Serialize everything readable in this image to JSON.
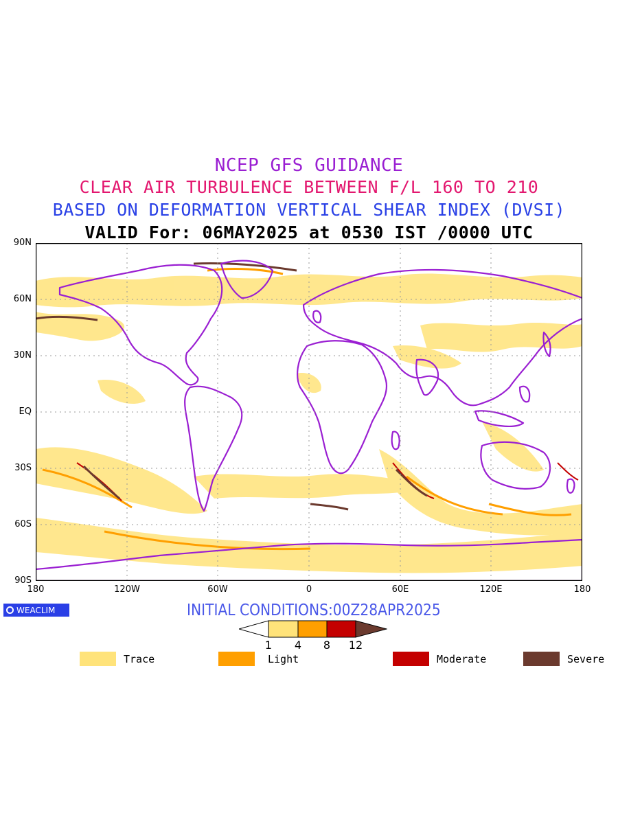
{
  "titles": {
    "line1": "NCEP GFS GUIDANCE",
    "line2": "CLEAR AIR TURBULENCE BETWEEN F/L 160 TO 210",
    "line3": "BASED ON DEFORMATION VERTICAL SHEAR INDEX (DVSI)",
    "line4": "VALID For: 06MAY2025 at 0530 IST /0000 UTC"
  },
  "axes": {
    "lat_labels": [
      "90N",
      "60N",
      "30N",
      "EQ",
      "30S",
      "60S",
      "90S"
    ],
    "lon_labels": [
      "180",
      "120W",
      "60W",
      "0",
      "60E",
      "120E",
      "180"
    ]
  },
  "logo": {
    "text": "WEACLIM"
  },
  "initial_conditions": "INITIAL CONDITIONS:00Z28APR2025",
  "colorbar": {
    "ticks": [
      "1",
      "4",
      "8",
      "12"
    ],
    "colors": {
      "trace": "#ffe37a",
      "light": "#ff9f00",
      "moderate": "#c40000",
      "severe": "#6b3a2e"
    }
  },
  "legend": [
    {
      "label": "Trace",
      "color": "#ffe37a"
    },
    {
      "label": "Light",
      "color": "#ff9f00"
    },
    {
      "label": "Moderate",
      "color": "#c40000"
    },
    {
      "label": "Severe",
      "color": "#6b3a2e"
    }
  ],
  "map_colors": {
    "coastline": "#9a1fd2",
    "grid": "#9a9a9a",
    "turbulence": "#ffe37a"
  }
}
